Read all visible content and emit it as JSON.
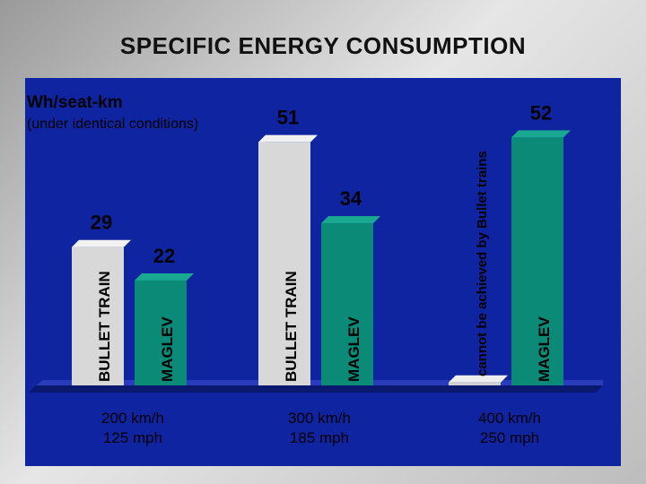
{
  "title": "SPECIFIC ENERGY CONSUMPTION",
  "unit": "Wh/seat-km",
  "subunit": "(under identical conditions)",
  "colors": {
    "panel": "#0f24a0",
    "bullet": "#d8d8d8",
    "maglev": "#0c8a78"
  },
  "chart_data": {
    "type": "bar",
    "categories": [
      "200 km/h 125 mph",
      "300 km/h 185 mph",
      "400 km/h 250 mph"
    ],
    "category_lines": [
      [
        "200 km/h",
        "125 mph"
      ],
      [
        "300 km/h",
        "185 mph"
      ],
      [
        "400 km/h",
        "250 mph"
      ]
    ],
    "series": [
      {
        "name": "BULLET TRAIN",
        "values": [
          29,
          51,
          null
        ]
      },
      {
        "name": "MAGLEV",
        "values": [
          22,
          34,
          52
        ]
      }
    ],
    "bar_labels": [
      [
        "BULLET TRAIN",
        "MAGLEV"
      ],
      [
        "BULLET TRAIN",
        "MAGLEV"
      ],
      [
        "cannot be achieved by  Bullet trains",
        "MAGLEV"
      ]
    ],
    "ylim": [
      0,
      60
    ],
    "title": "SPECIFIC ENERGY CONSUMPTION",
    "ylabel": "Wh/seat-km"
  }
}
